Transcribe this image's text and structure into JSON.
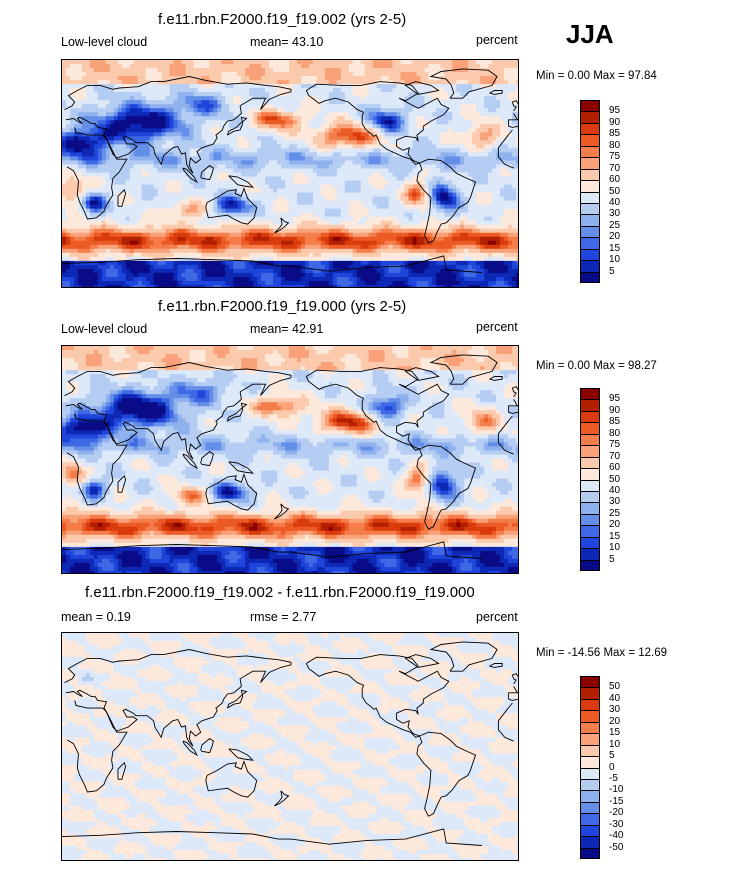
{
  "season": "JJA",
  "panels": [
    {
      "title": "f.e11.rbn.F2000.f19_f19.002 (yrs 2-5)",
      "left_label": "Low-level cloud",
      "mean_text": "mean=  43.10",
      "units": "percent",
      "minmax": "Min =   0.00 Max =  97.84",
      "levels": [
        "95",
        "90",
        "85",
        "80",
        "75",
        "70",
        "60",
        "50",
        "40",
        "30",
        "25",
        "20",
        "15",
        "10",
        "5"
      ],
      "colors": [
        "#8b0000",
        "#b22000",
        "#d93b0c",
        "#ec5a25",
        "#f47d4a",
        "#f9a27a",
        "#fbc9ac",
        "#fde9dc",
        "#dde8f9",
        "#b5cdf3",
        "#8fb2ef",
        "#658ee9",
        "#3f69e4",
        "#1f45db",
        "#0d28b5",
        "#0a0b87"
      ],
      "field": "abs"
    },
    {
      "title": "f.e11.rbn.F2000.f19_f19.000 (yrs 2-5)",
      "left_label": "Low-level cloud",
      "mean_text": "mean=  42.91",
      "units": "percent",
      "minmax": "Min =   0.00 Max =  98.27",
      "levels": [
        "95",
        "90",
        "85",
        "80",
        "75",
        "70",
        "60",
        "50",
        "40",
        "30",
        "25",
        "20",
        "15",
        "10",
        "5"
      ],
      "colors": [
        "#8b0000",
        "#b22000",
        "#d93b0c",
        "#ec5a25",
        "#f47d4a",
        "#f9a27a",
        "#fbc9ac",
        "#fde9dc",
        "#dde8f9",
        "#b5cdf3",
        "#8fb2ef",
        "#658ee9",
        "#3f69e4",
        "#1f45db",
        "#0d28b5",
        "#0a0b87"
      ],
      "field": "abs2"
    },
    {
      "title": "f.e11.rbn.F2000.f19_f19.002 - f.e11.rbn.F2000.f19_f19.000",
      "left_label": "mean =   0.19",
      "mean_text": "rmse =   2.77",
      "units": "percent",
      "minmax": "Min = -14.56 Max =  12.69",
      "levels": [
        "50",
        "40",
        "30",
        "20",
        "15",
        "10",
        "5",
        "0",
        "-5",
        "-10",
        "-15",
        "-20",
        "-30",
        "-40",
        "-50"
      ],
      "colors": [
        "#8b0000",
        "#b22000",
        "#d93b0c",
        "#ec5a25",
        "#f47d4a",
        "#f9a27a",
        "#fbc9ac",
        "#fde9dc",
        "#dde8f9",
        "#b5cdf3",
        "#8fb2ef",
        "#658ee9",
        "#3f69e4",
        "#1f45db",
        "#0d28b5",
        "#0a0b87"
      ],
      "field": "diff"
    }
  ]
}
